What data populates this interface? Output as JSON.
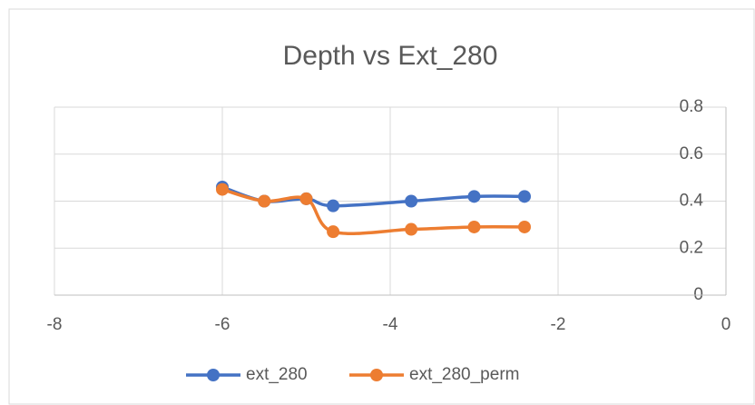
{
  "chart_data": {
    "type": "scatter-smooth",
    "title": "Depth vs Ext_280",
    "series": [
      {
        "name": "ext_280",
        "color": "#4472c4",
        "x": [
          -6,
          -5.5,
          -5,
          -4.68,
          -3.75,
          -3,
          -2.4
        ],
        "values": [
          0.46,
          0.4,
          0.41,
          0.38,
          0.4,
          0.42,
          0.42
        ]
      },
      {
        "name": "ext_280_perm",
        "color": "#ed7d31",
        "x": [
          -6,
          -5.5,
          -5,
          -4.68,
          -3.75,
          -3,
          -2.4
        ],
        "values": [
          0.45,
          0.4,
          0.41,
          0.27,
          0.28,
          0.29,
          0.29
        ]
      }
    ],
    "xlim": [
      -8,
      0
    ],
    "xticks": [
      -8,
      -6,
      -4,
      -2,
      0
    ],
    "ylim": [
      0,
      0.8
    ],
    "yticks": [
      0,
      0.2,
      0.4,
      0.6,
      0.8
    ],
    "grid": true,
    "legend": "bottom"
  }
}
